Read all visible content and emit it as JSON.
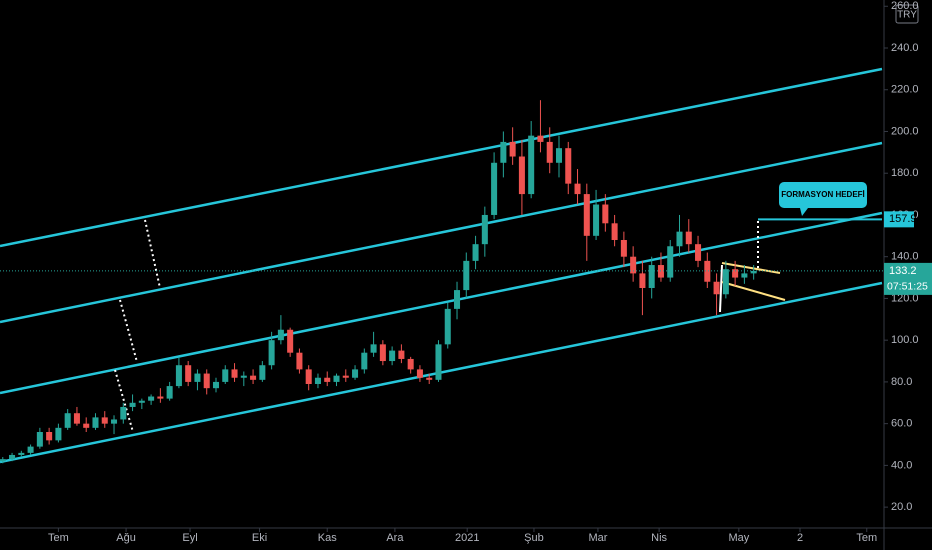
{
  "chart_data": {
    "type": "candlestick",
    "currency": "TRY",
    "x": [
      0,
      1,
      2,
      3,
      4,
      5,
      6,
      7,
      8,
      9,
      10,
      11,
      12,
      13,
      14,
      15,
      16,
      17,
      18,
      19,
      20,
      21,
      22,
      23,
      24,
      25,
      26,
      27,
      28,
      29,
      30,
      31,
      32,
      33,
      34,
      35,
      36,
      37,
      38,
      39,
      40,
      41,
      42,
      43,
      44,
      45,
      46,
      47,
      48,
      49,
      50,
      51,
      52,
      53,
      54,
      55,
      56,
      57,
      58,
      59,
      60,
      61,
      62,
      63,
      64,
      65,
      66,
      67,
      68,
      69,
      70,
      71,
      72,
      73,
      74,
      75,
      76,
      77,
      78,
      79,
      80,
      81
    ],
    "open": [
      42,
      43,
      45,
      46,
      49,
      56,
      52,
      58,
      65,
      60,
      58,
      63,
      60,
      62,
      68,
      70,
      71,
      73,
      72,
      78,
      88,
      80,
      84,
      77,
      80,
      86,
      82,
      83,
      81,
      88,
      100,
      105,
      94,
      86,
      79,
      82,
      80,
      83,
      82,
      86,
      94,
      98,
      90,
      95,
      91,
      86,
      82,
      81,
      98,
      115,
      124,
      138,
      146,
      160,
      185,
      195,
      188,
      170,
      198,
      195,
      185,
      192,
      175,
      170,
      150,
      165,
      156,
      148,
      140,
      132,
      125,
      136,
      130,
      145,
      152,
      146,
      138,
      128,
      122,
      134,
      130,
      132
    ],
    "high": [
      44,
      46,
      47,
      50,
      58,
      58,
      60,
      67,
      68,
      63,
      65,
      66,
      64,
      70,
      74,
      72,
      74,
      77,
      80,
      92,
      90,
      86,
      86,
      82,
      88,
      89,
      85,
      86,
      90,
      104,
      112,
      106,
      96,
      88,
      84,
      85,
      84,
      86,
      88,
      96,
      104,
      100,
      97,
      98,
      92,
      88,
      84,
      100,
      118,
      128,
      142,
      150,
      164,
      190,
      200,
      202,
      196,
      205,
      215,
      202,
      198,
      195,
      182,
      175,
      172,
      170,
      160,
      152,
      145,
      138,
      140,
      142,
      148,
      160,
      158,
      150,
      142,
      132,
      138,
      138,
      136,
      136
    ],
    "low": [
      41,
      42,
      44,
      45,
      48,
      50,
      51,
      57,
      59,
      56,
      57,
      58,
      55,
      60,
      66,
      67,
      69,
      70,
      71,
      77,
      78,
      76,
      74,
      75,
      79,
      80,
      78,
      79,
      80,
      86,
      98,
      92,
      84,
      76,
      77,
      78,
      78,
      80,
      81,
      84,
      92,
      88,
      88,
      89,
      84,
      80,
      79,
      80,
      96,
      110,
      120,
      134,
      140,
      158,
      178,
      184,
      160,
      168,
      190,
      180,
      178,
      170,
      165,
      138,
      148,
      152,
      145,
      135,
      128,
      112,
      120,
      128,
      128,
      140,
      142,
      135,
      125,
      112,
      120,
      126,
      127,
      129
    ],
    "close": [
      43,
      45,
      46,
      49,
      56,
      52,
      58,
      65,
      60,
      58,
      63,
      60,
      62,
      68,
      70,
      71,
      73,
      72,
      78,
      88,
      80,
      84,
      77,
      80,
      86,
      82,
      83,
      81,
      88,
      100,
      105,
      94,
      86,
      79,
      82,
      80,
      83,
      82,
      86,
      94,
      98,
      90,
      95,
      91,
      86,
      82,
      81,
      98,
      115,
      124,
      138,
      146,
      160,
      185,
      195,
      188,
      170,
      198,
      195,
      185,
      192,
      175,
      170,
      150,
      165,
      156,
      148,
      140,
      132,
      125,
      136,
      130,
      145,
      152,
      146,
      138,
      128,
      122,
      134,
      130,
      132,
      133.2
    ],
    "up_color": "#26a69a",
    "down_color": "#ef5350",
    "xlim": [
      -0.3,
      95.06
    ],
    "xticks": [
      {
        "value": 6,
        "label": "Tem"
      },
      {
        "value": 13.3,
        "label": "Ağu"
      },
      {
        "value": 20.2,
        "label": "Eyl"
      },
      {
        "value": 27.7,
        "label": "Eki"
      },
      {
        "value": 35,
        "label": "Kas"
      },
      {
        "value": 42.3,
        "label": "Ara"
      },
      {
        "value": 50.1,
        "label": "2021"
      },
      {
        "value": 57.3,
        "label": "Şub"
      },
      {
        "value": 64.2,
        "label": "Mar"
      },
      {
        "value": 70.8,
        "label": "Nis"
      },
      {
        "value": 79.4,
        "label": "May"
      },
      {
        "value": 86,
        "label": "2"
      },
      {
        "value": 93.2,
        "label": "Tem"
      }
    ],
    "ylim": [
      10,
      263
    ],
    "yticks": [
      {
        "value": 20,
        "label": "20.0"
      },
      {
        "value": 40,
        "label": "40.0"
      },
      {
        "value": 60,
        "label": "60.0"
      },
      {
        "value": 80,
        "label": "80.0"
      },
      {
        "value": 100,
        "label": "100.0"
      },
      {
        "value": 120,
        "label": "120.0"
      },
      {
        "value": 140,
        "label": "140.0"
      },
      {
        "value": 160,
        "label": "160.0"
      },
      {
        "value": 180,
        "label": "180.0"
      },
      {
        "value": 200,
        "label": "200.0"
      },
      {
        "value": 220,
        "label": "220.0"
      },
      {
        "value": 240,
        "label": "240.0"
      },
      {
        "value": 260,
        "label": "260.0"
      }
    ],
    "last_price": 133.2,
    "countdown": "07:51:25",
    "target": {
      "label": "FORMASYON HEDEFİ",
      "value": 157.9
    }
  }
}
